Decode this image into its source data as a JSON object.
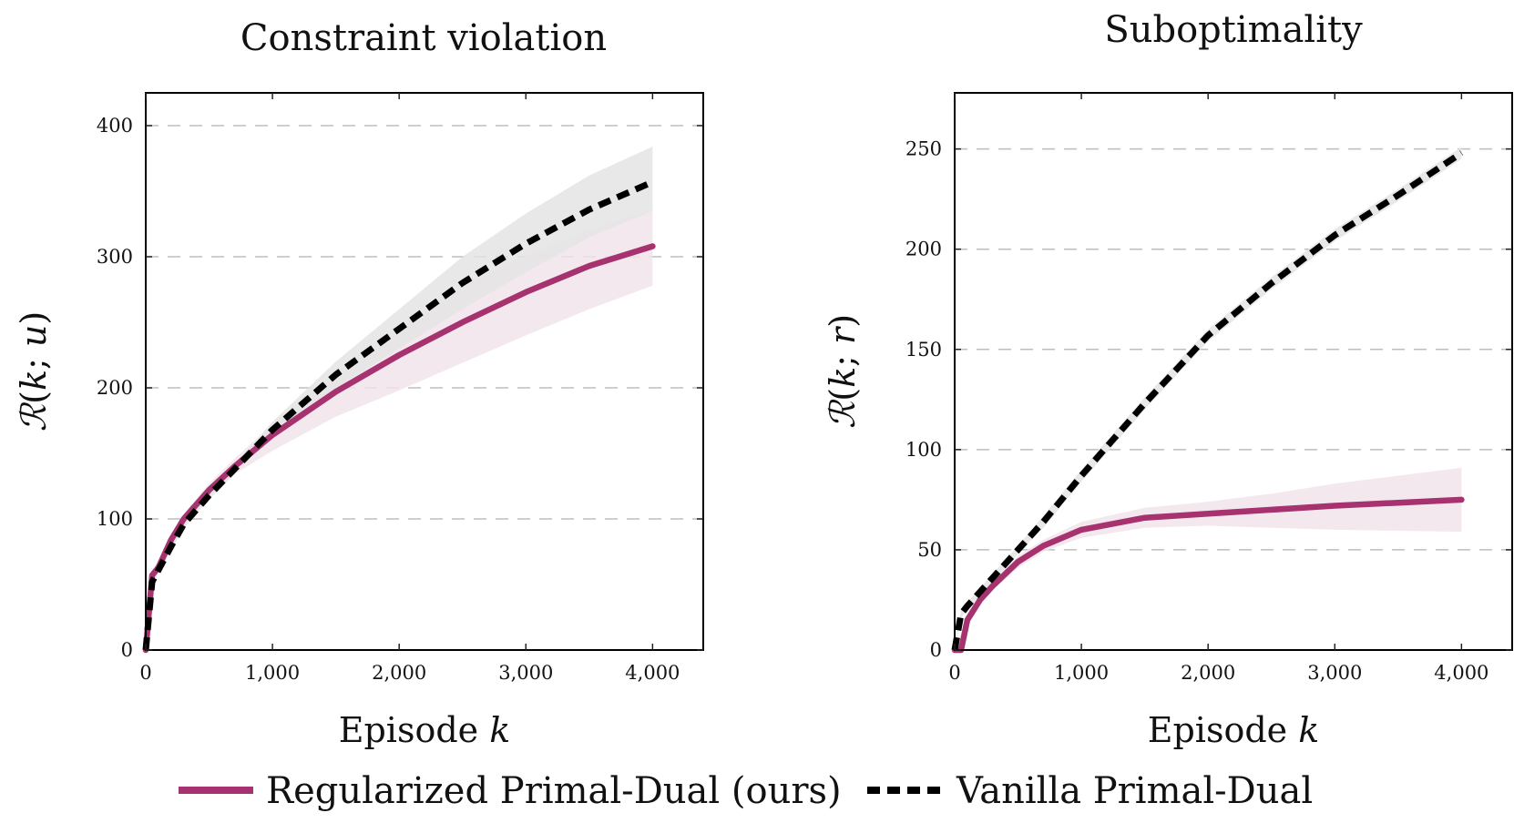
{
  "legend": {
    "entries": [
      {
        "label": "Regularized Primal-Dual (ours)",
        "color": "#a6326f",
        "style": "solid"
      },
      {
        "label": "Vanilla Primal-Dual",
        "color": "#000000",
        "style": "dashed"
      }
    ]
  },
  "chart_data": [
    {
      "type": "line",
      "title": "Constraint violation",
      "xlabel": "Episode k",
      "ylabel": "R(k; u)",
      "xlim": [
        0,
        4400
      ],
      "ylim": [
        0,
        425
      ],
      "xticks": [
        0,
        1000,
        2000,
        3000,
        4000
      ],
      "xtick_labels": [
        "0",
        "1,000",
        "2,000",
        "3,000",
        "4,000"
      ],
      "yticks": [
        0,
        100,
        200,
        300,
        400
      ],
      "ytick_labels": [
        "0",
        "100",
        "200",
        "300",
        "400"
      ],
      "grid": "horizontal-dashed",
      "x": [
        0,
        50,
        100,
        200,
        300,
        500,
        700,
        1000,
        1500,
        2000,
        2500,
        3000,
        3500,
        4000
      ],
      "series": [
        {
          "name": "Regularized Primal-Dual (ours)",
          "color": "#a6326f",
          "style": "solid",
          "band_color": "#f2e4ec",
          "values": [
            0,
            57,
            63,
            84,
            100,
            122,
            140,
            164,
            197,
            225,
            250,
            273,
            293,
            308
          ],
          "lower": [
            0,
            55,
            61,
            81,
            96,
            117,
            134,
            152,
            178,
            198,
            219,
            240,
            260,
            278
          ],
          "upper": [
            0,
            59,
            65,
            87,
            104,
            127,
            146,
            172,
            212,
            248,
            278,
            301,
            320,
            336
          ]
        },
        {
          "name": "Vanilla Primal-Dual",
          "color": "#000000",
          "style": "dashed",
          "band_color": "#e4e4e4",
          "values": [
            0,
            52,
            61,
            79,
            96,
            118,
            138,
            168,
            210,
            245,
            280,
            310,
            336,
            357
          ],
          "lower": [
            0,
            50,
            59,
            76,
            93,
            115,
            134,
            162,
            200,
            230,
            260,
            288,
            315,
            335
          ],
          "upper": [
            0,
            54,
            63,
            82,
            99,
            121,
            142,
            174,
            220,
            260,
            300,
            333,
            362,
            384
          ]
        }
      ]
    },
    {
      "type": "line",
      "title": "Suboptimality",
      "xlabel": "Episode k",
      "ylabel": "R(k; r)",
      "xlim": [
        0,
        4400
      ],
      "ylim": [
        0,
        278
      ],
      "xticks": [
        0,
        1000,
        2000,
        3000,
        4000
      ],
      "xtick_labels": [
        "0",
        "1,000",
        "2,000",
        "3,000",
        "4,000"
      ],
      "yticks": [
        0,
        50,
        100,
        150,
        200,
        250
      ],
      "ytick_labels": [
        "0",
        "50",
        "100",
        "150",
        "200",
        "250"
      ],
      "grid": "horizontal-dashed",
      "x": [
        0,
        50,
        100,
        200,
        300,
        500,
        700,
        1000,
        1500,
        2000,
        2500,
        3000,
        3500,
        4000
      ],
      "series": [
        {
          "name": "Regularized Primal-Dual (ours)",
          "color": "#a6326f",
          "style": "solid",
          "band_color": "#f2e4ec",
          "values": [
            0,
            0,
            15,
            25,
            32,
            44,
            52,
            60,
            66,
            68,
            70,
            72,
            73.5,
            75
          ],
          "lower": [
            0,
            0,
            14,
            23,
            30,
            41,
            49,
            56,
            61,
            62,
            61,
            60,
            59.5,
            59
          ],
          "upper": [
            0,
            0,
            16,
            27,
            34,
            47,
            55,
            64,
            71,
            74,
            78,
            83,
            87,
            91
          ]
        },
        {
          "name": "Vanilla Primal-Dual",
          "color": "#000000",
          "style": "dashed",
          "band_color": "#e4e4e4",
          "values": [
            0,
            18,
            22,
            29,
            36,
            50,
            64,
            87,
            123,
            157,
            183,
            207,
            227,
            248
          ],
          "lower": [
            0,
            16,
            20,
            27,
            34,
            48,
            61,
            84,
            120,
            154,
            180,
            204,
            224,
            245
          ],
          "upper": [
            0,
            20,
            24,
            31,
            38,
            52,
            67,
            90,
            126,
            160,
            186,
            210,
            230,
            251
          ]
        }
      ]
    }
  ]
}
